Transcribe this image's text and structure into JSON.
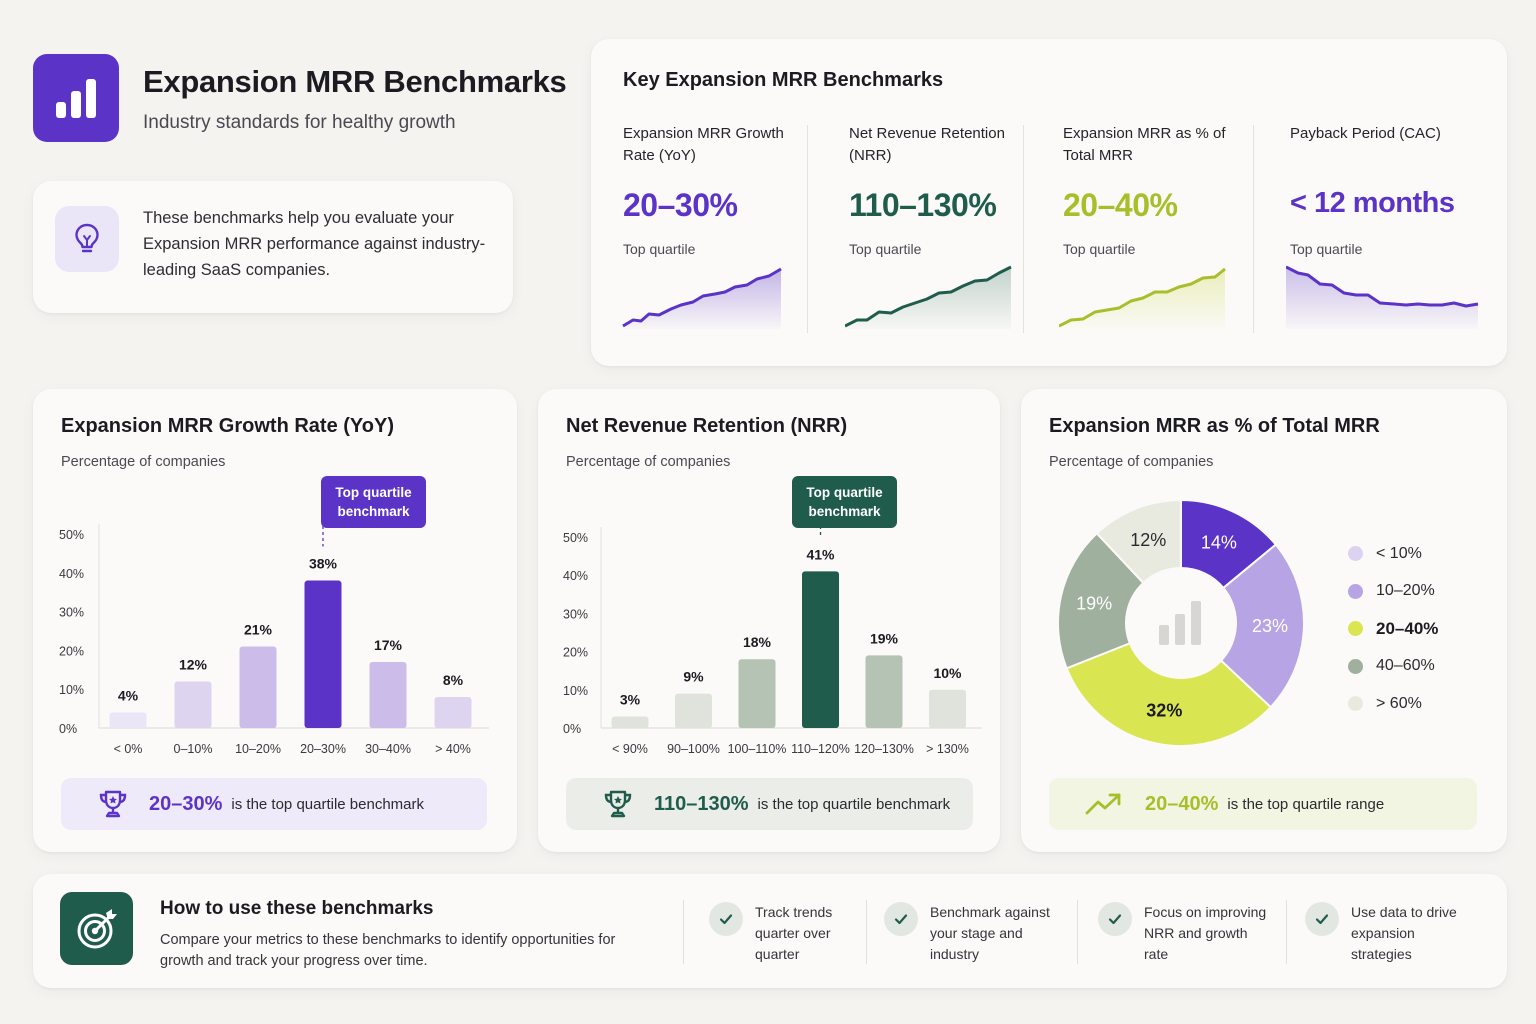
{
  "header": {
    "title": "Expansion MRR Benchmarks",
    "subtitle": "Industry standards for healthy growth",
    "intro": "These benchmarks help you evaluate your Expansion MRR performance against industry-leading SaaS companies."
  },
  "key_benchmarks": {
    "title": "Key Expansion MRR Benchmarks",
    "items": [
      {
        "label": "Expansion MRR Growth Rate (YoY)",
        "value": "20–30%",
        "sub": "Top quartile",
        "color": "#5b34c7",
        "trend": "up"
      },
      {
        "label": "Net Revenue Retention (NRR)",
        "value": "110–130%",
        "sub": "Top quartile",
        "color": "#1f5c4c",
        "trend": "up"
      },
      {
        "label": "Expansion MRR as % of Total MRR",
        "value": "20–40%",
        "sub": "Top quartile",
        "color": "#a8be2a",
        "trend": "up"
      },
      {
        "label": "Payback Period (CAC)",
        "value": "< 12 months",
        "sub": "Top quartile",
        "color": "#5b34c7",
        "trend": "down"
      }
    ]
  },
  "growth_chart": {
    "title": "Expansion MRR Growth Rate (YoY)",
    "subtitle": "Percentage of companies",
    "callout": [
      "Top quartile",
      "benchmark"
    ],
    "banner_value": "20–30%",
    "banner_text": "is the top quartile benchmark",
    "accent": "#5b34c7"
  },
  "nrr_chart": {
    "title": "Net Revenue Retention (NRR)",
    "subtitle": "Percentage of companies",
    "callout": [
      "Top quartile",
      "benchmark"
    ],
    "banner_value": "110–130%",
    "banner_text": "is the top quartile benchmark",
    "accent": "#1f5c4c"
  },
  "share_chart": {
    "title": "Expansion MRR as % of Total MRR",
    "subtitle": "Percentage of companies",
    "banner_value": "20–40%",
    "banner_text": "is the top quartile range",
    "accent": "#a8be2a"
  },
  "chart_data": [
    {
      "type": "bar",
      "title": "Expansion MRR Growth Rate (YoY)",
      "ylabel": "Percentage of companies",
      "categories": [
        "< 0%",
        "0–10%",
        "10–20%",
        "20–30%",
        "30–40%",
        "> 40%"
      ],
      "values": [
        4,
        12,
        21,
        38,
        17,
        8
      ],
      "labels": [
        "4%",
        "12%",
        "21%",
        "38%",
        "17%",
        "8%"
      ],
      "highlight_index": 3,
      "yticks": [
        "0%",
        "10%",
        "20%",
        "30%",
        "40%",
        "50%"
      ],
      "ylim": [
        0,
        50
      ],
      "colors": [
        "#ebe6f5",
        "#ddd4f0",
        "#cbbcea",
        "#5b34c7",
        "#cbbcea",
        "#ddd4f0"
      ]
    },
    {
      "type": "bar",
      "title": "Net Revenue Retention (NRR)",
      "ylabel": "Percentage of companies",
      "categories": [
        "< 90%",
        "90–100%",
        "100–110%",
        "110–120%",
        "120–130%",
        "> 130%"
      ],
      "values": [
        3,
        9,
        18,
        41,
        19,
        10
      ],
      "labels": [
        "3%",
        "9%",
        "18%",
        "41%",
        "19%",
        "10%"
      ],
      "highlight_index": 3,
      "yticks": [
        "0%",
        "10%",
        "20%",
        "30%",
        "40%",
        "50%"
      ],
      "ylim": [
        0,
        50
      ],
      "colors": [
        "#dfe3dc",
        "#dfe3dc",
        "#b5c3b5",
        "#1f5c4c",
        "#b5c3b5",
        "#dfe3dc"
      ]
    },
    {
      "type": "pie",
      "title": "Expansion MRR as % of Total MRR",
      "categories": [
        "< 10%",
        "10–20%",
        "20–40%",
        "40–60%",
        "> 60%"
      ],
      "values": [
        14,
        23,
        32,
        19,
        12
      ],
      "labels": [
        "14%",
        "23%",
        "32%",
        "19%",
        "12%"
      ],
      "colors": [
        "#5b34c7",
        "#b7a4e5",
        "#d9e652",
        "#9fb09e",
        "#e9eadf"
      ],
      "label_colors": [
        "#ffffff",
        "#ffffff",
        "#1c1b22",
        "#ffffff",
        "#2b2a31"
      ],
      "highlight_index": 2,
      "legend_colors": [
        "#dcd3f2",
        "#b7a4e5",
        "#d9e652",
        "#9fb09e",
        "#e9eadf"
      ]
    }
  ],
  "how_to": {
    "title": "How to use these benchmarks",
    "text": "Compare your metrics to these benchmarks to identify opportunities for growth and track your progress over time.",
    "tips": [
      "Track trends quarter over quarter",
      "Benchmark against your stage and industry",
      "Focus on improving NRR and growth rate",
      "Use data to drive expansion strategies"
    ]
  }
}
